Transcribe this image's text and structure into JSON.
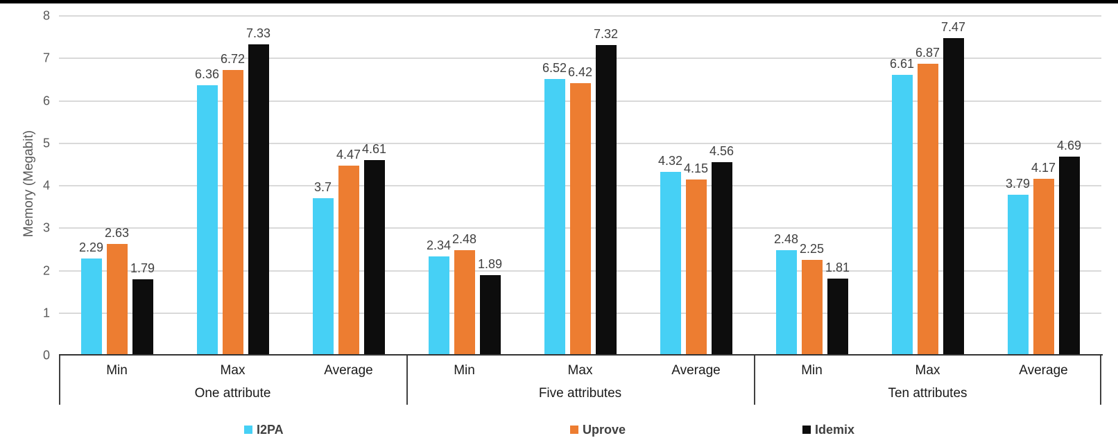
{
  "page": {
    "top_border_color": "#000000",
    "background": "#ffffff"
  },
  "chart_data": {
    "type": "bar",
    "title": "",
    "xlabel": "",
    "ylabel": "Memory (Megabit)",
    "ylim": [
      0,
      8
    ],
    "yticks": [
      0,
      1,
      2,
      3,
      4,
      5,
      6,
      7,
      8
    ],
    "grid": true,
    "legend_position": "bottom",
    "groups": [
      "One attribute",
      "Five attributes",
      "Ten attributes"
    ],
    "categories": [
      "Min",
      "Max",
      "Average"
    ],
    "series": [
      {
        "name": "I2PA",
        "color": "#46D0F5",
        "values": [
          [
            2.29,
            6.36,
            3.7
          ],
          [
            2.34,
            6.52,
            4.32
          ],
          [
            2.48,
            6.61,
            3.79
          ]
        ]
      },
      {
        "name": "Uprove",
        "color": "#ED7D31",
        "values": [
          [
            2.63,
            6.72,
            4.47
          ],
          [
            2.48,
            6.42,
            4.15
          ],
          [
            2.25,
            6.87,
            4.17
          ]
        ]
      },
      {
        "name": "Idemix",
        "color": "#0D0D0D",
        "values": [
          [
            1.79,
            7.33,
            4.61
          ],
          [
            1.89,
            7.32,
            4.56
          ],
          [
            1.81,
            7.47,
            4.69
          ]
        ]
      }
    ],
    "colors": {
      "gridline": "#D9D9D9",
      "axis_line": "#333333",
      "table_border": "#404040",
      "tick_label": "#595959",
      "axis_title": "#595959",
      "data_label": "#404040",
      "category_label": "#1A1A1A",
      "group_label": "#1A1A1A",
      "legend_label": "#404040"
    }
  }
}
